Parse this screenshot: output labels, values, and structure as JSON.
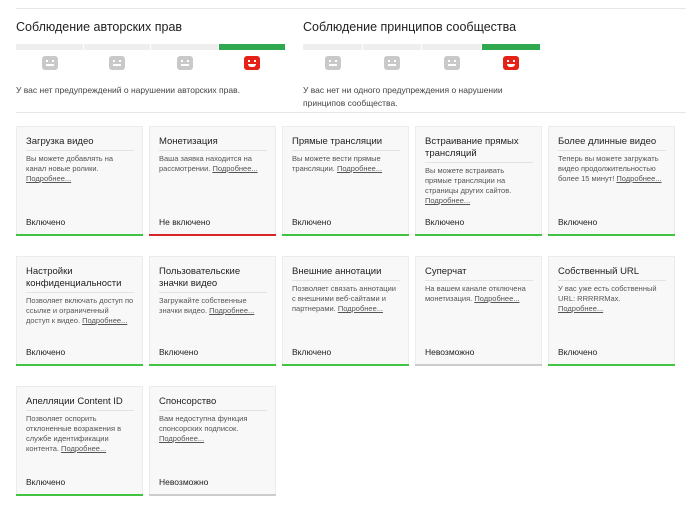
{
  "copyright": {
    "title": "Соблюдение авторских прав",
    "text": "У вас нет предупреждений о нарушении авторских прав."
  },
  "community": {
    "title": "Соблюдение принципов сообщества",
    "text": "У вас нет ни одного предупреждения о нарушении принципов сообщества."
  },
  "more_label": "Подробнее...",
  "colors": {
    "enabled": "#42c342",
    "disabled": "#d7262b",
    "unavailable": "#cccccc",
    "good": "#2fa84f",
    "face_good": "#e62117"
  },
  "cards": [
    {
      "title": "Загрузка видео",
      "desc": "Вы можете добавлять на канал новые ролики.",
      "status": "Включено",
      "state": "enabled"
    },
    {
      "title": "Монетизация",
      "desc": "Ваша заявка находится на рассмотрении.",
      "status": "Не включено",
      "state": "disabled"
    },
    {
      "title": "Прямые трансляции",
      "desc": "Вы можете вести прямые трансляции.",
      "status": "Включено",
      "state": "enabled"
    },
    {
      "title": "Встраивание прямых трансляций",
      "desc": "Вы можете встраивать прямые трансляции на страницы других сайтов.",
      "status": "Включено",
      "state": "enabled"
    },
    {
      "title": "Более длинные видео",
      "desc": "Теперь вы можете загружать видео продолжительностью более 15 минут!",
      "status": "Включено",
      "state": "enabled"
    },
    {
      "title": "Настройки конфиденциальности",
      "desc": "Позволяет включать доступ по ссылке и ограниченный доступ к видео.",
      "status": "Включено",
      "state": "enabled"
    },
    {
      "title": "Пользовательские значки видео",
      "desc": "Загружайте собственные значки видео.",
      "status": "Включено",
      "state": "enabled"
    },
    {
      "title": "Внешние аннотации",
      "desc": "Позволяет связать аннотации с внешними веб-сайтами и партнерами.",
      "status": "Включено",
      "state": "enabled"
    },
    {
      "title": "Суперчат",
      "desc": "На вашем канале отключена монетизация.",
      "status": "Невозможно",
      "state": "unavailable"
    },
    {
      "title": "Собственный URL",
      "desc": "У вас уже есть собственный URL: RRRRRMax.",
      "status": "Включено",
      "state": "enabled"
    },
    {
      "title": "Апелляции Content ID",
      "desc": "Позволяет оспорить отклоненные возражения в службе идентификации контента.",
      "status": "Включено",
      "state": "enabled"
    },
    {
      "title": "Спонсорство",
      "desc": "Вам недоступна функция спонсорских подписок.",
      "status": "Невозможно",
      "state": "unavailable"
    }
  ]
}
